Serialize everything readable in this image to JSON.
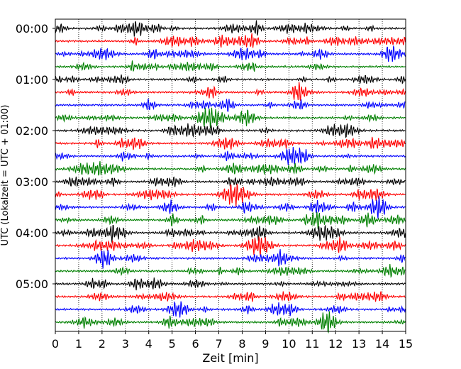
{
  "chart_data": {
    "type": "line",
    "title": "",
    "xlabel": "Zeit  [min]",
    "ylabel": "UTC (Lokalzeit = UTC + 01:00)",
    "xlim": [
      0,
      15
    ],
    "x_ticks": [
      "0",
      "1",
      "2",
      "3",
      "4",
      "5",
      "6",
      "7",
      "8",
      "9",
      "10",
      "11",
      "12",
      "13",
      "14",
      "15"
    ],
    "y_ticks": [
      "00:00",
      "01:00",
      "02:00",
      "03:00",
      "04:00",
      "05:00"
    ],
    "grid": "vertical dotted lines at each minute",
    "trace_count": 24,
    "trace_interval_minutes": 15,
    "trace_colors": [
      "#000000",
      "#ff0000",
      "#0000ff",
      "#008000"
    ],
    "series": [
      {
        "start": "00:00"
      },
      {
        "start": "00:15"
      },
      {
        "start": "00:30"
      },
      {
        "start": "00:45"
      },
      {
        "start": "01:00"
      },
      {
        "start": "01:15"
      },
      {
        "start": "01:30"
      },
      {
        "start": "01:45"
      },
      {
        "start": "02:00"
      },
      {
        "start": "02:15"
      },
      {
        "start": "02:30"
      },
      {
        "start": "02:45"
      },
      {
        "start": "03:00"
      },
      {
        "start": "03:15"
      },
      {
        "start": "03:30"
      },
      {
        "start": "03:45"
      },
      {
        "start": "04:00"
      },
      {
        "start": "04:15"
      },
      {
        "start": "04:30"
      },
      {
        "start": "04:45"
      },
      {
        "start": "05:00"
      },
      {
        "start": "05:15"
      },
      {
        "start": "05:30"
      },
      {
        "start": "05:45"
      }
    ]
  }
}
